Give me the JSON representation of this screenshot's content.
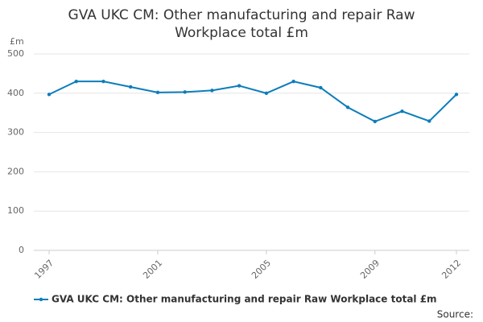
{
  "chart_data": {
    "type": "line",
    "title": "GVA UKC CM: Other manufacturing and repair Raw Workplace total £m",
    "y_unit": "£m",
    "x": [
      1997,
      1998,
      1999,
      2000,
      2001,
      2002,
      2003,
      2004,
      2005,
      2006,
      2007,
      2008,
      2009,
      2010,
      2011,
      2012
    ],
    "series": [
      {
        "name": "GVA UKC CM: Other manufacturing and repair Raw Workplace total £m",
        "color": "#0c7dbb",
        "values": [
          397,
          430,
          430,
          416,
          402,
          403,
          407,
          419,
          400,
          430,
          414,
          364,
          328,
          354,
          329,
          397
        ]
      }
    ],
    "xlim": [
      1997,
      2012
    ],
    "xticks": [
      1997,
      2001,
      2005,
      2009,
      2012
    ],
    "ylim": [
      0,
      500
    ],
    "yticks": [
      0,
      100,
      200,
      300,
      400,
      500
    ],
    "grid": true,
    "legend": "bottom",
    "source_label": "Source:"
  }
}
